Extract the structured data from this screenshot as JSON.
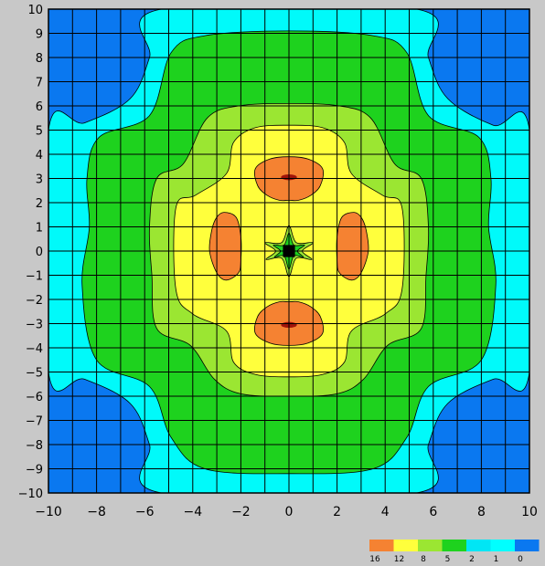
{
  "chart_data": {
    "type": "contour",
    "title": "",
    "xlabel": "",
    "ylabel": "",
    "xlim": [
      -10,
      10
    ],
    "ylim": [
      -10,
      10
    ],
    "grid": true,
    "x_ticks": [
      -10,
      -8,
      -6,
      -4,
      -2,
      0,
      2,
      4,
      6,
      8,
      10
    ],
    "x_tick_labels": [
      "−10",
      "−8",
      "−6",
      "−4",
      "−2",
      "0",
      "2",
      "4",
      "6",
      "8",
      "10"
    ],
    "y_ticks": [
      10,
      9,
      8,
      7,
      6,
      5,
      4,
      3,
      2,
      1,
      0,
      -1,
      -2,
      -3,
      -4,
      -5,
      -6,
      -7,
      -8,
      -9,
      -10
    ],
    "y_tick_labels": [
      "10",
      "9",
      "8",
      "7",
      "6",
      "5",
      "4",
      "3",
      "2",
      "1",
      "0",
      "−1",
      "−2",
      "−3",
      "−4",
      "−5",
      "−6",
      "−7",
      "−8",
      "−9",
      "−10"
    ],
    "legend": {
      "placement": "bottom-right",
      "levels": [
        {
          "label": "16",
          "color": "#f58232"
        },
        {
          "label": "12",
          "color": "#ffff3c"
        },
        {
          "label": "8",
          "color": "#9be632"
        },
        {
          "label": "5",
          "color": "#1ed21e"
        },
        {
          "label": "2",
          "color": "#00e6f5"
        },
        {
          "label": "1",
          "color": "#00ffff"
        },
        {
          "label": "0",
          "color": "#0a78f0"
        }
      ]
    },
    "regions": [
      {
        "level": "0-1",
        "color": "#0a78f0",
        "shape": "plot-background"
      },
      {
        "level": "1-2",
        "color": "#00fafa",
        "shape": "cross",
        "outline": [
          [
            -5.3,
            10
          ],
          [
            5.3,
            10
          ],
          [
            5.8,
            8
          ],
          [
            6.6,
            6.3
          ],
          [
            8.5,
            5.2
          ],
          [
            10,
            5
          ],
          [
            10,
            -5
          ],
          [
            8.5,
            -5.3
          ],
          [
            6.6,
            -6.3
          ],
          [
            5.8,
            -8
          ],
          [
            5.3,
            -10
          ],
          [
            -5.3,
            -10
          ],
          [
            -5.8,
            -8
          ],
          [
            -6.6,
            -6.3
          ],
          [
            -8.5,
            -5.3
          ],
          [
            -10,
            -5
          ],
          [
            -10,
            5
          ],
          [
            -8.5,
            5.3
          ],
          [
            -6.6,
            6.3
          ],
          [
            -5.8,
            8
          ]
        ]
      },
      {
        "level": "2-5",
        "color": "#1ed21e",
        "shape": "cross",
        "outline": [
          [
            0,
            9.1
          ],
          [
            3.5,
            8.9
          ],
          [
            4.9,
            8.2
          ],
          [
            5.8,
            5.6
          ],
          [
            7.9,
            4.7
          ],
          [
            8.4,
            3
          ],
          [
            8.3,
            1
          ],
          [
            8.6,
            -1.4
          ],
          [
            8,
            -4.5
          ],
          [
            5.8,
            -5.6
          ],
          [
            4.9,
            -7.7
          ],
          [
            3.5,
            -9
          ],
          [
            0,
            -9.2
          ],
          [
            -3.5,
            -9
          ],
          [
            -4.9,
            -7.7
          ],
          [
            -5.8,
            -5.6
          ],
          [
            -8,
            -4.5
          ],
          [
            -8.6,
            -1.4
          ],
          [
            -8.3,
            1
          ],
          [
            -8.4,
            3
          ],
          [
            -7.9,
            4.7
          ],
          [
            -5.8,
            5.6
          ],
          [
            -4.9,
            8.2
          ],
          [
            -3.5,
            8.9
          ]
        ]
      },
      {
        "level": "5-8",
        "color": "#9be632",
        "shape": "cross",
        "outline": [
          [
            0,
            6.1
          ],
          [
            2.1,
            6
          ],
          [
            3.4,
            5.5
          ],
          [
            4.4,
            3.6
          ],
          [
            5.5,
            3
          ],
          [
            5.8,
            1
          ],
          [
            5.7,
            -1
          ],
          [
            5.5,
            -3.2
          ],
          [
            4.1,
            -3.9
          ],
          [
            3.1,
            -5.3
          ],
          [
            2,
            -5.9
          ],
          [
            0,
            -6
          ],
          [
            -2,
            -5.9
          ],
          [
            -3.1,
            -5.3
          ],
          [
            -4.1,
            -3.9
          ],
          [
            -5.5,
            -3.2
          ],
          [
            -5.7,
            -1
          ],
          [
            -5.8,
            1
          ],
          [
            -5.5,
            3
          ],
          [
            -4.4,
            3.6
          ],
          [
            -3.4,
            5.5
          ],
          [
            -2.1,
            6
          ]
        ]
      },
      {
        "level": "8-12",
        "color": "#ffff3c",
        "shape": "cross",
        "outline": [
          [
            0,
            5.2
          ],
          [
            1.4,
            5.1
          ],
          [
            2.3,
            4.5
          ],
          [
            2.6,
            3.2
          ],
          [
            3.9,
            2.3
          ],
          [
            4.7,
            1.8
          ],
          [
            4.7,
            -1.6
          ],
          [
            4,
            -2.6
          ],
          [
            2.6,
            -3.3
          ],
          [
            2.3,
            -4.6
          ],
          [
            1.4,
            -5.1
          ],
          [
            0,
            -5.2
          ],
          [
            -1.4,
            -5.1
          ],
          [
            -2.3,
            -4.6
          ],
          [
            -2.6,
            -3.3
          ],
          [
            -4,
            -2.6
          ],
          [
            -4.7,
            -1.6
          ],
          [
            -4.7,
            1.8
          ],
          [
            -3.9,
            2.3
          ],
          [
            -2.6,
            3.2
          ],
          [
            -2.3,
            4.5
          ],
          [
            -1.4,
            5.1
          ]
        ]
      },
      {
        "level": "12-16",
        "color": "#f58232",
        "shape": "blob",
        "outline": [
          [
            0,
            3.9
          ],
          [
            0.8,
            3.8
          ],
          [
            1.4,
            3.4
          ],
          [
            1.3,
            2.7
          ],
          [
            0.9,
            2.3
          ],
          [
            0.4,
            2.1
          ],
          [
            0,
            2.1
          ],
          [
            -0.4,
            2.1
          ],
          [
            -0.9,
            2.3
          ],
          [
            -1.3,
            2.7
          ],
          [
            -1.4,
            3.4
          ],
          [
            -0.8,
            3.8
          ]
        ]
      },
      {
        "level": "12-16",
        "color": "#f58232",
        "shape": "blob",
        "outline": [
          [
            0,
            -2.1
          ],
          [
            0.4,
            -2.1
          ],
          [
            0.9,
            -2.3
          ],
          [
            1.3,
            -2.7
          ],
          [
            1.4,
            -3.4
          ],
          [
            0.8,
            -3.8
          ],
          [
            0,
            -3.9
          ],
          [
            -0.8,
            -3.8
          ],
          [
            -1.4,
            -3.4
          ],
          [
            -1.3,
            -2.7
          ],
          [
            -0.9,
            -2.3
          ],
          [
            -0.4,
            -2.1
          ]
        ]
      },
      {
        "level": "12-16",
        "color": "#f58232",
        "shape": "blob",
        "outline": [
          [
            -2.7,
            1.6
          ],
          [
            -2.2,
            1.4
          ],
          [
            -2,
            0.6
          ],
          [
            -2,
            -0.4
          ],
          [
            -2.1,
            -0.9
          ],
          [
            -2.6,
            -1.2
          ],
          [
            -3,
            -0.9
          ],
          [
            -3.3,
            0
          ],
          [
            -3.2,
            0.9
          ],
          [
            -3,
            1.4
          ]
        ]
      },
      {
        "level": "12-16",
        "color": "#f58232",
        "shape": "blob",
        "outline": [
          [
            2.7,
            1.6
          ],
          [
            3,
            1.4
          ],
          [
            3.2,
            0.9
          ],
          [
            3.3,
            0
          ],
          [
            3,
            -0.9
          ],
          [
            2.6,
            -1.2
          ],
          [
            2.1,
            -0.9
          ],
          [
            2,
            -0.4
          ],
          [
            2,
            0.6
          ],
          [
            2.2,
            1.4
          ]
        ]
      },
      {
        "level": "16+",
        "color": "#a0140a",
        "shape": "ellipse",
        "cx": 0,
        "cy": 3.05,
        "rx": 0.33,
        "ry": 0.12
      },
      {
        "level": "16+",
        "color": "#a0140a",
        "shape": "ellipse",
        "cx": 0,
        "cy": -3.05,
        "rx": 0.33,
        "ry": 0.12
      },
      {
        "level": "5-8",
        "color": "#9be632",
        "shape": "star",
        "outline": [
          [
            0,
            1.05
          ],
          [
            0.3,
            0.35
          ],
          [
            1,
            0.35
          ],
          [
            0.55,
            0
          ],
          [
            0.95,
            -0.35
          ],
          [
            0.3,
            -0.3
          ],
          [
            0,
            -1.05
          ],
          [
            -0.3,
            -0.3
          ],
          [
            -0.95,
            -0.35
          ],
          [
            -0.55,
            0
          ],
          [
            -1,
            0.35
          ],
          [
            -0.3,
            0.35
          ]
        ]
      },
      {
        "level": "2-5",
        "color": "#1ed21e",
        "shape": "star",
        "outline": [
          [
            0,
            0.75
          ],
          [
            0.2,
            0.25
          ],
          [
            0.65,
            0.25
          ],
          [
            0.35,
            0
          ],
          [
            0.6,
            -0.25
          ],
          [
            0.2,
            -0.2
          ],
          [
            0,
            -0.75
          ],
          [
            -0.2,
            -0.2
          ],
          [
            -0.6,
            -0.25
          ],
          [
            -0.35,
            0
          ],
          [
            -0.65,
            0.25
          ],
          [
            -0.2,
            0.25
          ]
        ]
      },
      {
        "level": "singularity",
        "color": "#000000",
        "shape": "square",
        "cx": 0,
        "cy": 0,
        "half": 0.25
      }
    ]
  }
}
